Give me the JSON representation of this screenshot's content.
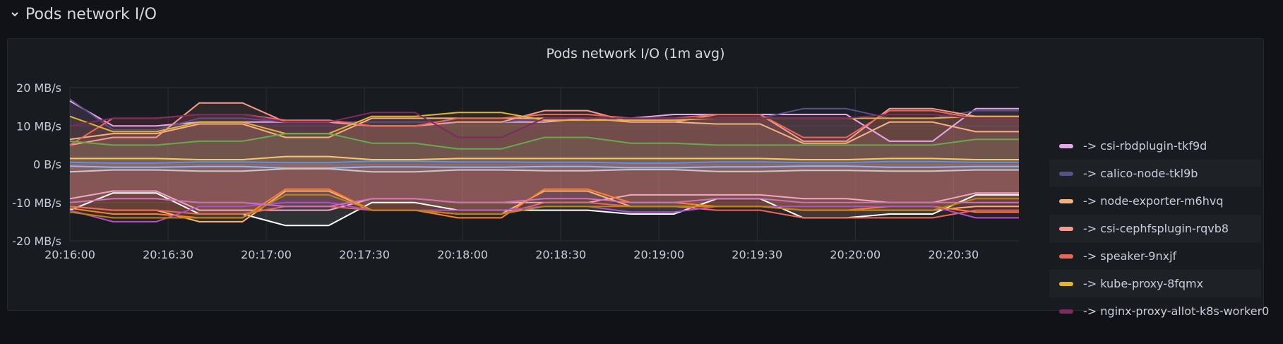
{
  "row": {
    "title": "Pods network I/O"
  },
  "panel": {
    "title": "Pods network I/O (1m avg)"
  },
  "chart_data": {
    "type": "area",
    "title": "Pods network I/O (1m avg)",
    "x_ticks": [
      "20:16:00",
      "20:16:30",
      "20:17:00",
      "20:17:30",
      "20:18:00",
      "20:18:30",
      "20:19:00",
      "20:19:30",
      "20:20:00",
      "20:20:30"
    ],
    "y_ticks": [
      {
        "value": 20,
        "label": "20 MB/s"
      },
      {
        "value": 10,
        "label": "10 MB/s"
      },
      {
        "value": 0,
        "label": "0 B/s"
      },
      {
        "value": -10,
        "label": "-10 MB/s"
      },
      {
        "value": -20,
        "label": "-20 MB/s"
      }
    ],
    "ylim": [
      -20,
      20
    ],
    "x_seconds_range": [
      0,
      290
    ],
    "grid": true,
    "legend_position": "right",
    "series": [
      {
        "name": "-> csi-rbdplugin-tkf9d",
        "color": "#e8a8e8",
        "values": [
          16.5,
          10,
          10,
          11,
          11,
          11,
          11,
          10,
          10,
          11,
          11,
          11,
          12,
          12,
          13,
          13,
          13,
          13,
          13,
          6,
          6,
          14.5,
          14.5
        ]
      },
      {
        "name": "-> calico-node-tkl9b",
        "color": "#5a4f87",
        "values": [
          17,
          9,
          9,
          12,
          12,
          11,
          11,
          11,
          11,
          11,
          11,
          12,
          12,
          12,
          12,
          12,
          12,
          14.5,
          14.5,
          12,
          12,
          14,
          14
        ]
      },
      {
        "name": "-> node-exporter-m6hvq",
        "color": "#f7b17f",
        "values": [
          6.5,
          8,
          8,
          10.5,
          10.5,
          7,
          7,
          12,
          12,
          12,
          12,
          12,
          12,
          11,
          11,
          10.5,
          10.5,
          5.5,
          5.5,
          11,
          11,
          8.5,
          8.5
        ]
      },
      {
        "name": "-> csi-cephfsplugin-rqvb8",
        "color": "#f69a8f",
        "values": [
          5,
          7,
          7,
          16,
          16,
          11,
          11,
          10,
          10,
          11,
          11,
          14,
          14,
          11,
          11,
          13,
          13,
          6,
          6,
          14.5,
          14.5,
          12.5,
          12.5
        ]
      },
      {
        "name": "-> speaker-9nxjf",
        "color": "#e8665a",
        "values": [
          5,
          12,
          12,
          13,
          13,
          11.5,
          11.5,
          10,
          10,
          12,
          12,
          13,
          13,
          12,
          12,
          13,
          13,
          7,
          7,
          14,
          14,
          12,
          12
        ]
      },
      {
        "name": "-> kube-proxy-8fqmx",
        "color": "#e0b437",
        "values": [
          12.5,
          8.5,
          8.5,
          11,
          11,
          8,
          8,
          12.5,
          12.5,
          13.5,
          13.5,
          11.5,
          11.5,
          11.5,
          11.5,
          12,
          12,
          12,
          12,
          12,
          12,
          12.5,
          12.5
        ]
      },
      {
        "name": "-> nginx-proxy-allot-k8s-worker0",
        "color": "#7d2a5e",
        "values": [
          10,
          12,
          12,
          13,
          13,
          11,
          11,
          13.5,
          13.5,
          7,
          7,
          12,
          12,
          12,
          12,
          12,
          12,
          12,
          12,
          13,
          13,
          12,
          12
        ]
      },
      {
        "name": "",
        "color": "#6aa84f",
        "values": [
          6,
          5,
          5,
          6,
          6,
          8,
          8,
          5.5,
          5.5,
          4,
          4,
          7,
          7,
          5.5,
          5.5,
          5,
          5,
          5,
          5,
          5,
          5,
          6.5,
          6.5
        ]
      },
      {
        "name": "",
        "color": "#f2c96d",
        "values": [
          1.5,
          1.5,
          1.5,
          1.2,
          1.2,
          2,
          2,
          1.2,
          1.2,
          1.5,
          1.5,
          1.5,
          1.5,
          1.5,
          1.5,
          1.5,
          1.5,
          1.2,
          1.2,
          1.5,
          1.5,
          1.2,
          1.2
        ]
      },
      {
        "name": "",
        "color": "#5794f2",
        "values": [
          0.5,
          0.3,
          0.3,
          0.6,
          0.6,
          0.4,
          0.4,
          0.8,
          0.8,
          0.6,
          0.6,
          0.5,
          0.5,
          0.3,
          0.3,
          0.6,
          0.6,
          0.4,
          0.4,
          0.7,
          0.7,
          0.5,
          0.5
        ]
      },
      {
        "name": "",
        "color": "#8ab8ff",
        "values": [
          -0.5,
          -0.8,
          -0.8,
          -0.6,
          -0.6,
          -1,
          -1,
          -0.7,
          -0.7,
          -0.8,
          -0.8,
          -0.6,
          -0.6,
          -0.9,
          -0.9,
          -0.7,
          -0.7,
          -0.5,
          -0.5,
          -0.8,
          -0.8,
          -0.6,
          -0.6
        ]
      },
      {
        "name": "",
        "color": "#c8c8c8",
        "values": [
          -2,
          -1.5,
          -1.5,
          -1.8,
          -1.8,
          -1.2,
          -1.2,
          -2,
          -2,
          -1.5,
          -1.5,
          -1.7,
          -1.7,
          -1.4,
          -1.4,
          -1.9,
          -1.9,
          -1.6,
          -1.6,
          -1.8,
          -1.8,
          -1.5,
          -1.5
        ]
      },
      {
        "name": "",
        "color": "#f0a8c0",
        "values": [
          -9,
          -7,
          -7,
          -12,
          -12,
          -12,
          -12,
          -9,
          -9,
          -10,
          -10,
          -10,
          -10,
          -8,
          -8,
          -8,
          -8,
          -9,
          -9,
          -10,
          -10,
          -7.5,
          -7.5
        ]
      },
      {
        "name": "",
        "color": "#ffffff",
        "values": [
          -12,
          -7.5,
          -7.5,
          -13,
          -13,
          -16,
          -16,
          -10,
          -10,
          -12,
          -12,
          -12,
          -12,
          -13,
          -13,
          -9,
          -9,
          -14,
          -14,
          -13,
          -13,
          -8,
          -8
        ]
      },
      {
        "name": "",
        "color": "#f7b17f",
        "values": [
          -11,
          -12,
          -12,
          -15,
          -15,
          -7,
          -7,
          -12,
          -12,
          -13,
          -13,
          -7,
          -7,
          -11,
          -11,
          -11,
          -11,
          -12,
          -12,
          -12,
          -12,
          -11,
          -11
        ]
      },
      {
        "name": "",
        "color": "#ff7f2a",
        "values": [
          -11.5,
          -13,
          -13,
          -14,
          -14,
          -6.5,
          -6.5,
          -12,
          -12,
          -14,
          -14,
          -6.5,
          -6.5,
          -10,
          -10,
          -11,
          -11,
          -12,
          -12,
          -11,
          -11,
          -12.5,
          -12.5
        ]
      },
      {
        "name": "",
        "color": "#e8665a",
        "values": [
          -11,
          -12,
          -12,
          -13,
          -13,
          -11,
          -11,
          -12,
          -12,
          -13,
          -13,
          -10,
          -10,
          -11,
          -11,
          -12,
          -12,
          -14,
          -14,
          -14,
          -14,
          -12,
          -12
        ]
      },
      {
        "name": "",
        "color": "#b04fc8",
        "values": [
          -12,
          -15,
          -15,
          -11,
          -11,
          -10,
          -10,
          -12,
          -12,
          -12,
          -12,
          -11,
          -11,
          -12.5,
          -12.5,
          -11,
          -11,
          -11,
          -11,
          -11,
          -11,
          -14,
          -14
        ]
      },
      {
        "name": "",
        "color": "#b8860b",
        "values": [
          -12.5,
          -14,
          -14,
          -14,
          -14,
          -8,
          -8,
          -12,
          -12,
          -13,
          -13,
          -11,
          -11,
          -11,
          -11,
          -11,
          -11,
          -12,
          -12,
          -12,
          -12,
          -9,
          -9
        ]
      },
      {
        "name": "",
        "color": "#d070b8",
        "values": [
          -10,
          -9,
          -9,
          -10,
          -10,
          -11,
          -11,
          -9,
          -9,
          -10,
          -10,
          -9,
          -9,
          -10,
          -10,
          -9,
          -9,
          -10,
          -10,
          -10,
          -10,
          -10,
          -10
        ]
      }
    ]
  }
}
